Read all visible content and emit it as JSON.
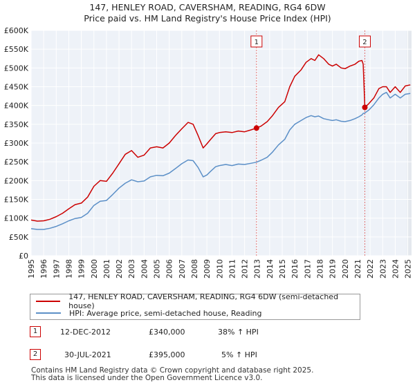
{
  "title_line1": "147, HENLEY ROAD, CAVERSHAM, READING, RG4 6DW",
  "title_line2": "Price paid vs. HM Land Registry's House Price Index (HPI)",
  "chart_data": {
    "type": "line",
    "title": "147, HENLEY ROAD, CAVERSHAM, READING, RG4 6DW — Price paid vs. HM Land Registry's House Price Index (HPI)",
    "xlabel": "",
    "ylabel": "",
    "xlim": [
      1995,
      2025.3
    ],
    "ylim": [
      0,
      600000
    ],
    "x_ticks": [
      1995,
      1996,
      1997,
      1998,
      1999,
      2000,
      2001,
      2002,
      2003,
      2004,
      2005,
      2006,
      2007,
      2008,
      2009,
      2010,
      2011,
      2012,
      2013,
      2014,
      2015,
      2016,
      2017,
      2018,
      2019,
      2020,
      2021,
      2022,
      2023,
      2024,
      2025
    ],
    "x_tick_labels": [
      "1995",
      "1996",
      "1997",
      "1998",
      "1999",
      "2000",
      "2001",
      "2002",
      "2003",
      "2004",
      "2005",
      "2006",
      "2007",
      "2008",
      "2009",
      "2010",
      "2011",
      "2012",
      "2013",
      "2014",
      "2015",
      "2016",
      "2017",
      "2018",
      "2019",
      "2020",
      "2021",
      "2022",
      "2023",
      "2024",
      "2025"
    ],
    "y_ticks": [
      0,
      50000,
      100000,
      150000,
      200000,
      250000,
      300000,
      350000,
      400000,
      450000,
      500000,
      550000,
      600000
    ],
    "y_tick_labels": [
      "£0",
      "£50K",
      "£100K",
      "£150K",
      "£200K",
      "£250K",
      "£300K",
      "£350K",
      "£400K",
      "£450K",
      "£500K",
      "£550K",
      "£600K"
    ],
    "grid": true,
    "series": [
      {
        "name": "147, HENLEY ROAD, CAVERSHAM, READING, RG4 6DW (semi-detached house)",
        "color": "#cc0000",
        "x": [
          1995.0,
          1995.5,
          1996.0,
          1996.5,
          1997.0,
          1997.5,
          1998.0,
          1998.5,
          1999.0,
          1999.5,
          2000.0,
          2000.5,
          2001.0,
          2001.5,
          2002.0,
          2002.5,
          2003.0,
          2003.5,
          2004.0,
          2004.5,
          2005.0,
          2005.5,
          2006.0,
          2006.5,
          2007.0,
          2007.5,
          2007.9,
          2008.3,
          2008.7,
          2009.0,
          2009.3,
          2009.7,
          2010.0,
          2010.5,
          2011.0,
          2011.5,
          2012.0,
          2012.5,
          2012.95,
          2013.3,
          2013.8,
          2014.2,
          2014.7,
          2015.2,
          2015.6,
          2016.0,
          2016.5,
          2016.9,
          2017.3,
          2017.6,
          2017.9,
          2018.3,
          2018.7,
          2019.0,
          2019.3,
          2019.7,
          2020.0,
          2020.4,
          2020.8,
          2021.1,
          2021.35,
          2021.45,
          2021.58,
          2021.9,
          2022.3,
          2022.7,
          2023.0,
          2023.3,
          2023.6,
          2024.0,
          2024.4,
          2024.8,
          2025.2
        ],
        "values": [
          95000,
          92000,
          93000,
          97000,
          104000,
          113000,
          125000,
          136000,
          140000,
          156000,
          185000,
          200000,
          198000,
          220000,
          245000,
          270000,
          280000,
          262000,
          268000,
          287000,
          290000,
          287000,
          300000,
          320000,
          338000,
          355000,
          350000,
          320000,
          287000,
          298000,
          310000,
          325000,
          328000,
          330000,
          328000,
          332000,
          330000,
          335000,
          340000,
          345000,
          357000,
          372000,
          395000,
          410000,
          450000,
          478000,
          495000,
          515000,
          525000,
          520000,
          535000,
          525000,
          510000,
          505000,
          510000,
          500000,
          498000,
          505000,
          510000,
          518000,
          520000,
          510000,
          395000,
          405000,
          420000,
          445000,
          450000,
          450000,
          435000,
          450000,
          435000,
          452000,
          455000
        ]
      },
      {
        "name": "HPI: Average price, semi-detached house, Reading",
        "color": "#5b8fc7",
        "x": [
          1995.0,
          1995.5,
          1996.0,
          1996.5,
          1997.0,
          1997.5,
          1998.0,
          1998.5,
          1999.0,
          1999.5,
          2000.0,
          2000.5,
          2001.0,
          2001.5,
          2002.0,
          2002.5,
          2003.0,
          2003.5,
          2004.0,
          2004.5,
          2005.0,
          2005.5,
          2006.0,
          2006.5,
          2007.0,
          2007.5,
          2007.9,
          2008.3,
          2008.7,
          2009.0,
          2009.3,
          2009.7,
          2010.0,
          2010.5,
          2011.0,
          2011.5,
          2012.0,
          2012.5,
          2012.95,
          2013.3,
          2013.8,
          2014.2,
          2014.7,
          2015.2,
          2015.6,
          2016.0,
          2016.5,
          2016.9,
          2017.3,
          2017.6,
          2017.9,
          2018.3,
          2018.7,
          2019.0,
          2019.3,
          2019.7,
          2020.0,
          2020.4,
          2020.8,
          2021.1,
          2021.35,
          2021.45,
          2021.58,
          2021.9,
          2022.3,
          2022.7,
          2023.0,
          2023.3,
          2023.6,
          2024.0,
          2024.4,
          2024.8,
          2025.2
        ],
        "values": [
          72000,
          70000,
          70000,
          73000,
          78000,
          85000,
          93000,
          99000,
          102000,
          113000,
          134000,
          145000,
          147000,
          163000,
          180000,
          193000,
          202000,
          197000,
          199000,
          210000,
          214000,
          213000,
          220000,
          232000,
          245000,
          255000,
          253000,
          235000,
          210000,
          215000,
          225000,
          237000,
          240000,
          243000,
          240000,
          244000,
          243000,
          246000,
          249000,
          254000,
          262000,
          275000,
          295000,
          310000,
          335000,
          350000,
          360000,
          368000,
          373000,
          370000,
          372000,
          365000,
          362000,
          360000,
          362000,
          358000,
          357000,
          360000,
          365000,
          370000,
          375000,
          379000,
          380000,
          388000,
          402000,
          420000,
          430000,
          435000,
          420000,
          430000,
          420000,
          430000,
          432000
        ]
      }
    ],
    "markers": [
      {
        "id": "1",
        "x": 2012.95,
        "y": 340000,
        "label": "1"
      },
      {
        "id": "2",
        "x": 2021.58,
        "y": 395000,
        "label": "2"
      }
    ]
  },
  "legend": {
    "items": [
      {
        "label": "147, HENLEY ROAD, CAVERSHAM, READING, RG4 6DW (semi-detached house)",
        "color": "#cc0000"
      },
      {
        "label": "HPI: Average price, semi-detached house, Reading",
        "color": "#5b8fc7"
      }
    ]
  },
  "transactions": [
    {
      "num": "1",
      "date": "12-DEC-2012",
      "price": "£340,000",
      "hpi": "38% ↑ HPI"
    },
    {
      "num": "2",
      "date": "30-JUL-2021",
      "price": "£395,000",
      "hpi": "5% ↑ HPI"
    }
  ],
  "footer": {
    "line1": "Contains HM Land Registry data © Crown copyright and database right 2025.",
    "line2": "This data is licensed under the Open Government Licence v3.0."
  }
}
